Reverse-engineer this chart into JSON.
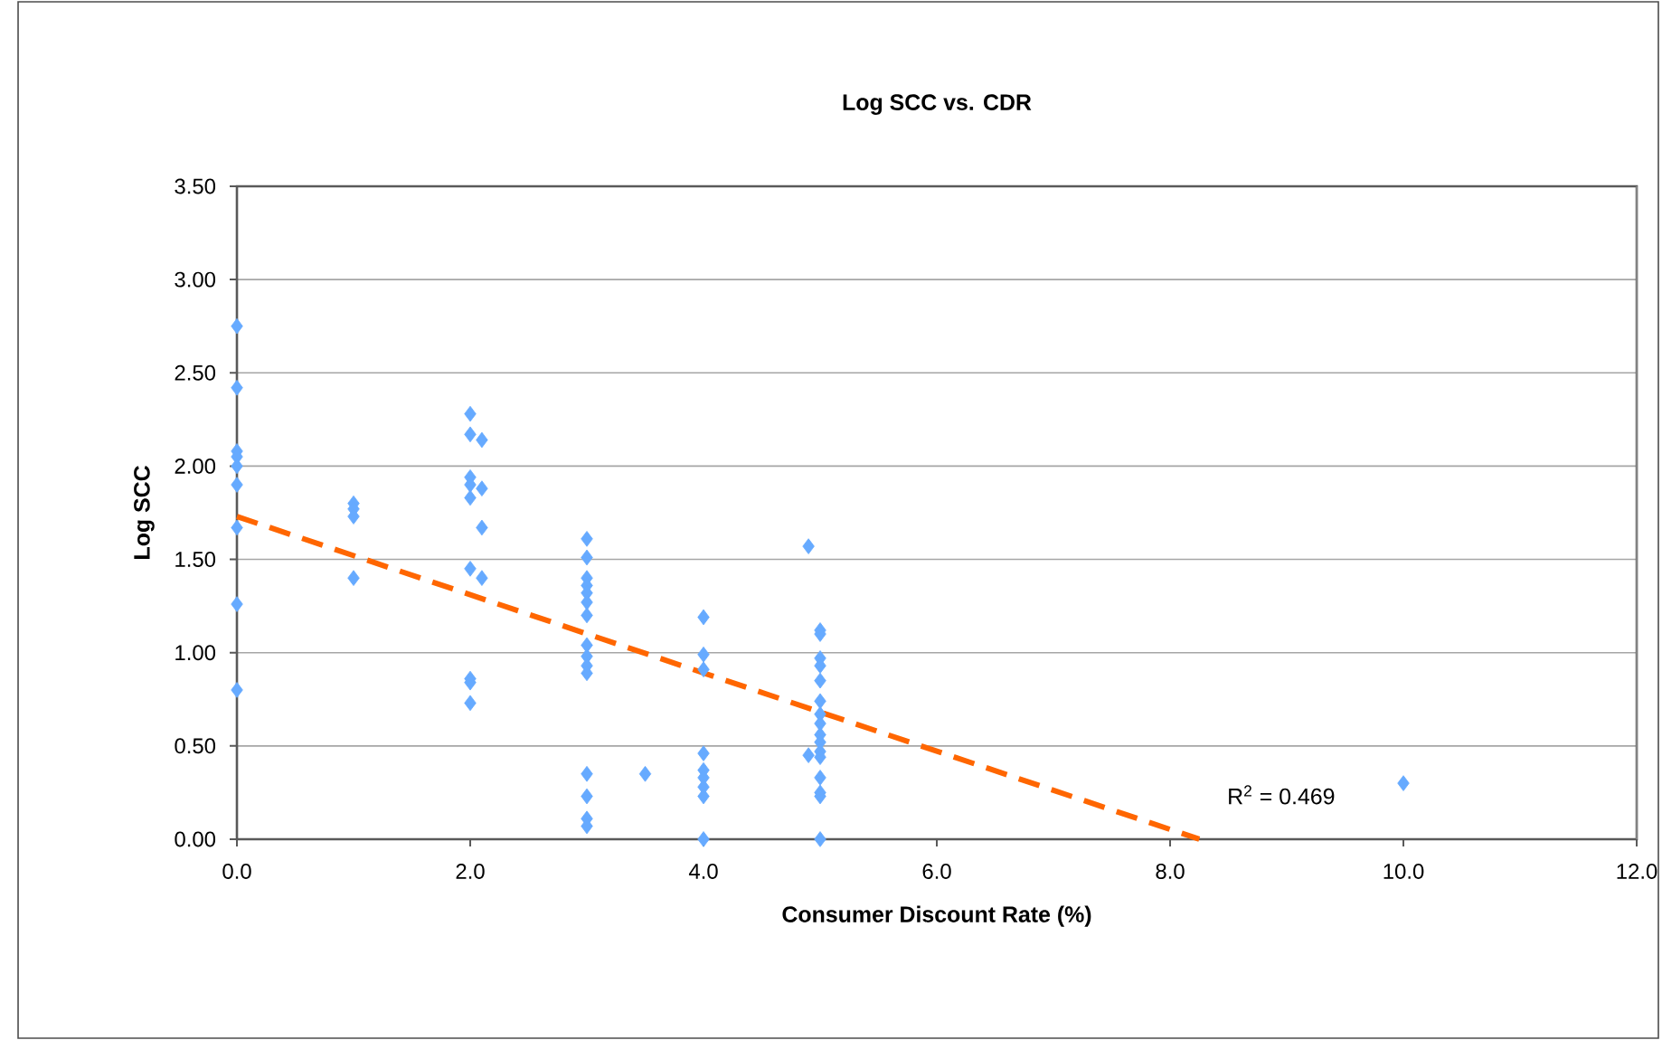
{
  "chart_data": {
    "type": "scatter",
    "title": "Log SCC vs. CDR",
    "xlabel": "Consumer Discount Rate (%)",
    "ylabel": "Log SCC",
    "xlim": [
      0,
      12
    ],
    "ylim": [
      0,
      3.5
    ],
    "xticks": [
      {
        "value": 0,
        "label": "0.0"
      },
      {
        "value": 2,
        "label": "2.0"
      },
      {
        "value": 4,
        "label": "4.0"
      },
      {
        "value": 6,
        "label": "6.0"
      },
      {
        "value": 8,
        "label": "8.0"
      },
      {
        "value": 10,
        "label": "10.0"
      },
      {
        "value": 12,
        "label": "12.0"
      }
    ],
    "yticks": [
      {
        "value": 0,
        "label": "0.00"
      },
      {
        "value": 0.5,
        "label": "0.50"
      },
      {
        "value": 1,
        "label": "1.00"
      },
      {
        "value": 1.5,
        "label": "1.50"
      },
      {
        "value": 2,
        "label": "2.00"
      },
      {
        "value": 2.5,
        "label": "2.50"
      },
      {
        "value": 3,
        "label": "3.00"
      },
      {
        "value": 3.5,
        "label": "3.50"
      }
    ],
    "grid": "y",
    "annotations": [
      "R$^{2}$ = 0.469"
    ],
    "series": [
      {
        "marker": "diamond",
        "color": "#66aaff",
        "x": [
          0,
          0,
          0,
          0,
          0,
          0,
          0,
          0,
          0,
          1,
          1,
          1,
          1,
          2,
          2,
          2,
          2,
          2,
          2,
          2,
          2,
          2,
          2.1,
          2.1,
          2.1,
          2.1,
          3,
          3,
          3,
          3,
          3,
          3,
          3,
          3,
          3,
          3,
          3,
          3,
          3,
          3,
          3,
          3.5,
          4,
          4,
          4,
          4,
          4,
          4,
          4,
          4,
          4,
          4.9,
          4.9,
          5,
          5,
          5,
          5,
          5,
          5,
          5,
          5,
          5,
          5,
          5,
          5,
          5,
          5,
          5,
          5,
          10
        ],
        "values": [
          2.75,
          2.42,
          2.08,
          2.05,
          2.0,
          1.9,
          1.67,
          1.26,
          0.8,
          1.8,
          1.77,
          1.73,
          1.4,
          2.28,
          2.17,
          1.94,
          1.9,
          1.83,
          1.45,
          0.86,
          0.84,
          0.73,
          2.14,
          1.88,
          1.67,
          1.4,
          1.61,
          1.51,
          1.4,
          1.36,
          1.32,
          1.27,
          1.2,
          1.04,
          0.98,
          0.93,
          0.89,
          0.35,
          0.23,
          0.11,
          0.07,
          0.35,
          1.19,
          0.99,
          0.91,
          0.46,
          0.37,
          0.33,
          0.28,
          0.23,
          0.0,
          1.57,
          0.45,
          1.12,
          1.1,
          0.97,
          0.93,
          0.85,
          0.74,
          0.67,
          0.62,
          0.56,
          0.52,
          0.47,
          0.44,
          0.33,
          0.25,
          0.23,
          0.0,
          0.3
        ]
      },
      {
        "type": "line",
        "color": "#ff6600",
        "line_style": "dashed",
        "x": [
          0,
          8.25
        ],
        "values": [
          1.73,
          0
        ]
      }
    ]
  }
}
